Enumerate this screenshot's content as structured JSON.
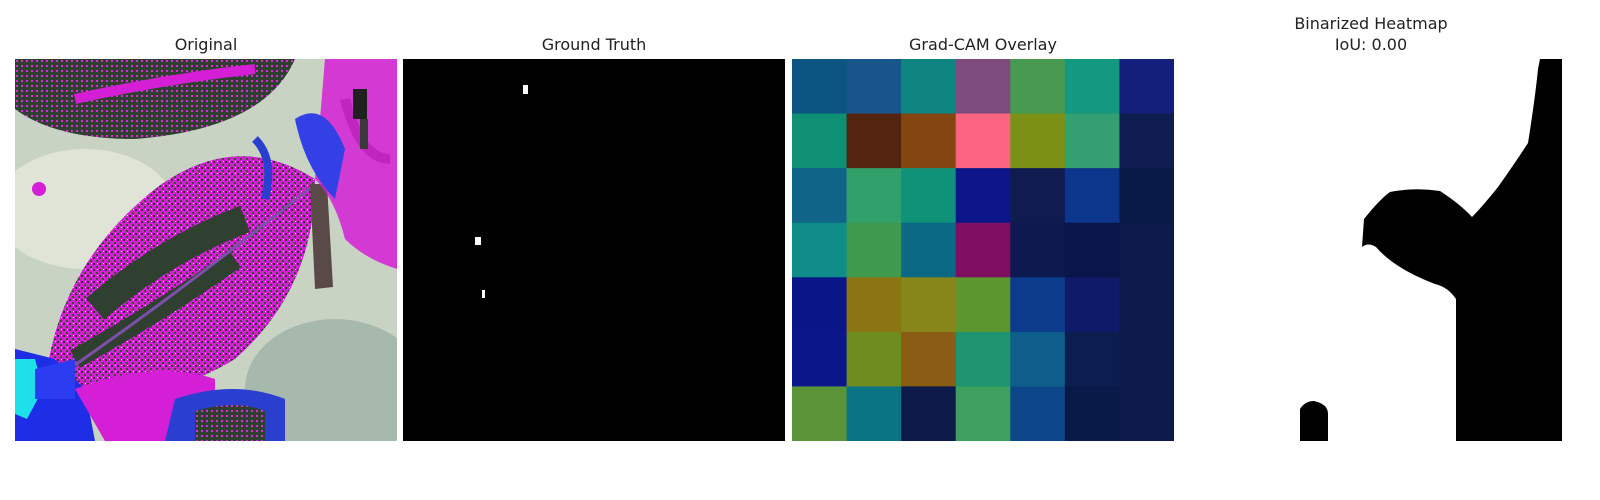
{
  "panels": [
    {
      "id": "original",
      "title": "Original"
    },
    {
      "id": "ground-truth",
      "title": "Ground Truth"
    },
    {
      "id": "gradcam",
      "title": "Grad-CAM Overlay"
    },
    {
      "id": "binarized",
      "title": "Binarized Heatmap",
      "subtitle": "IoU: 0.00"
    }
  ],
  "colors": {
    "gradcam_grid": [
      [
        "#0c5582",
        "#17558a",
        "#0e8480",
        "#7e4b7e",
        "#489a50",
        "#129980",
        "#141f7c"
      ],
      [
        "#0f8f74",
        "#532410",
        "#854512",
        "#fc6582",
        "#7c9016",
        "#34a072",
        "#0f1d50"
      ],
      [
        "#0f6487",
        "#31a06a",
        "#0f9278",
        "#0c158a",
        "#101b50",
        "#0c358c",
        "#0a1a48"
      ],
      [
        "#0f8c87",
        "#3f9a50",
        "#0b6986",
        "#7e0f60",
        "#0c1a50",
        "#0a154a",
        "#0c1a4c"
      ],
      [
        "#0a1688",
        "#8a7512",
        "#87861a",
        "#5b962e",
        "#0d3b8b",
        "#0f1a68",
        "#0c1a4c"
      ],
      [
        "#0a168a",
        "#6f8c1e",
        "#8a5d14",
        "#1e9570",
        "#0f5d8a",
        "#0c1d4f",
        "#0c1a4c"
      ],
      [
        "#5b9438",
        "#0b7483",
        "#0d1b4b",
        "#3da060",
        "#0e468a",
        "#0a1a48",
        "#0c1a4c"
      ]
    ]
  }
}
